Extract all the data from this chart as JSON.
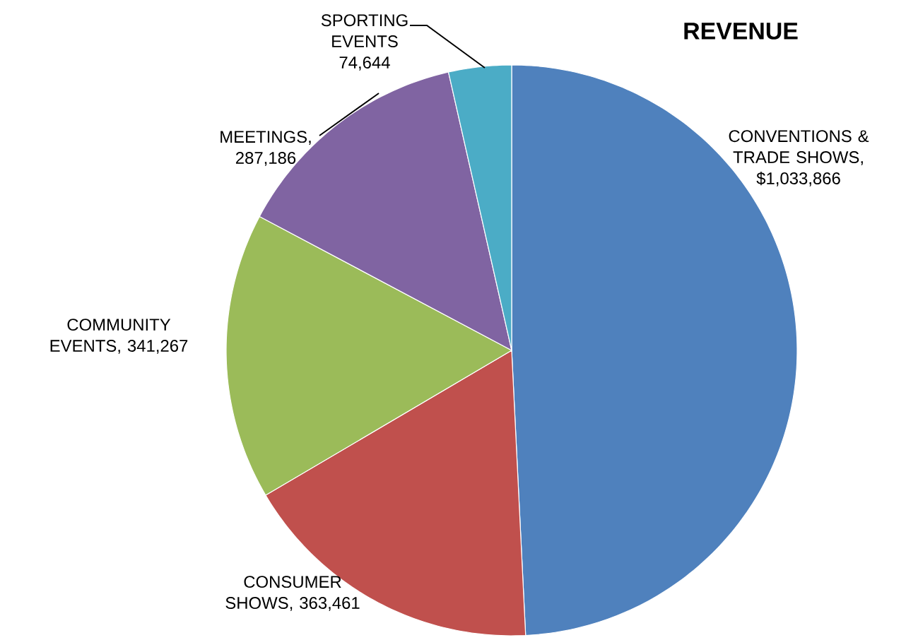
{
  "chart_data": {
    "type": "pie",
    "title": "REVENUE",
    "categories": [
      "CONVENTIONS & TRADE SHOWS",
      "CONSUMER SHOWS",
      "COMMUNITY EVENTS",
      "MEETINGS",
      "SPORTING EVENTS"
    ],
    "values": [
      1033866,
      363461,
      341267,
      287186,
      74644
    ],
    "colors": [
      "#4f81bd",
      "#c0504d",
      "#9bbb59",
      "#8064a2",
      "#4bacc6"
    ],
    "value_labels": [
      ", $1,033,866",
      ", 363,461",
      ", 341,267",
      ", 287,186",
      "74,644"
    ]
  }
}
